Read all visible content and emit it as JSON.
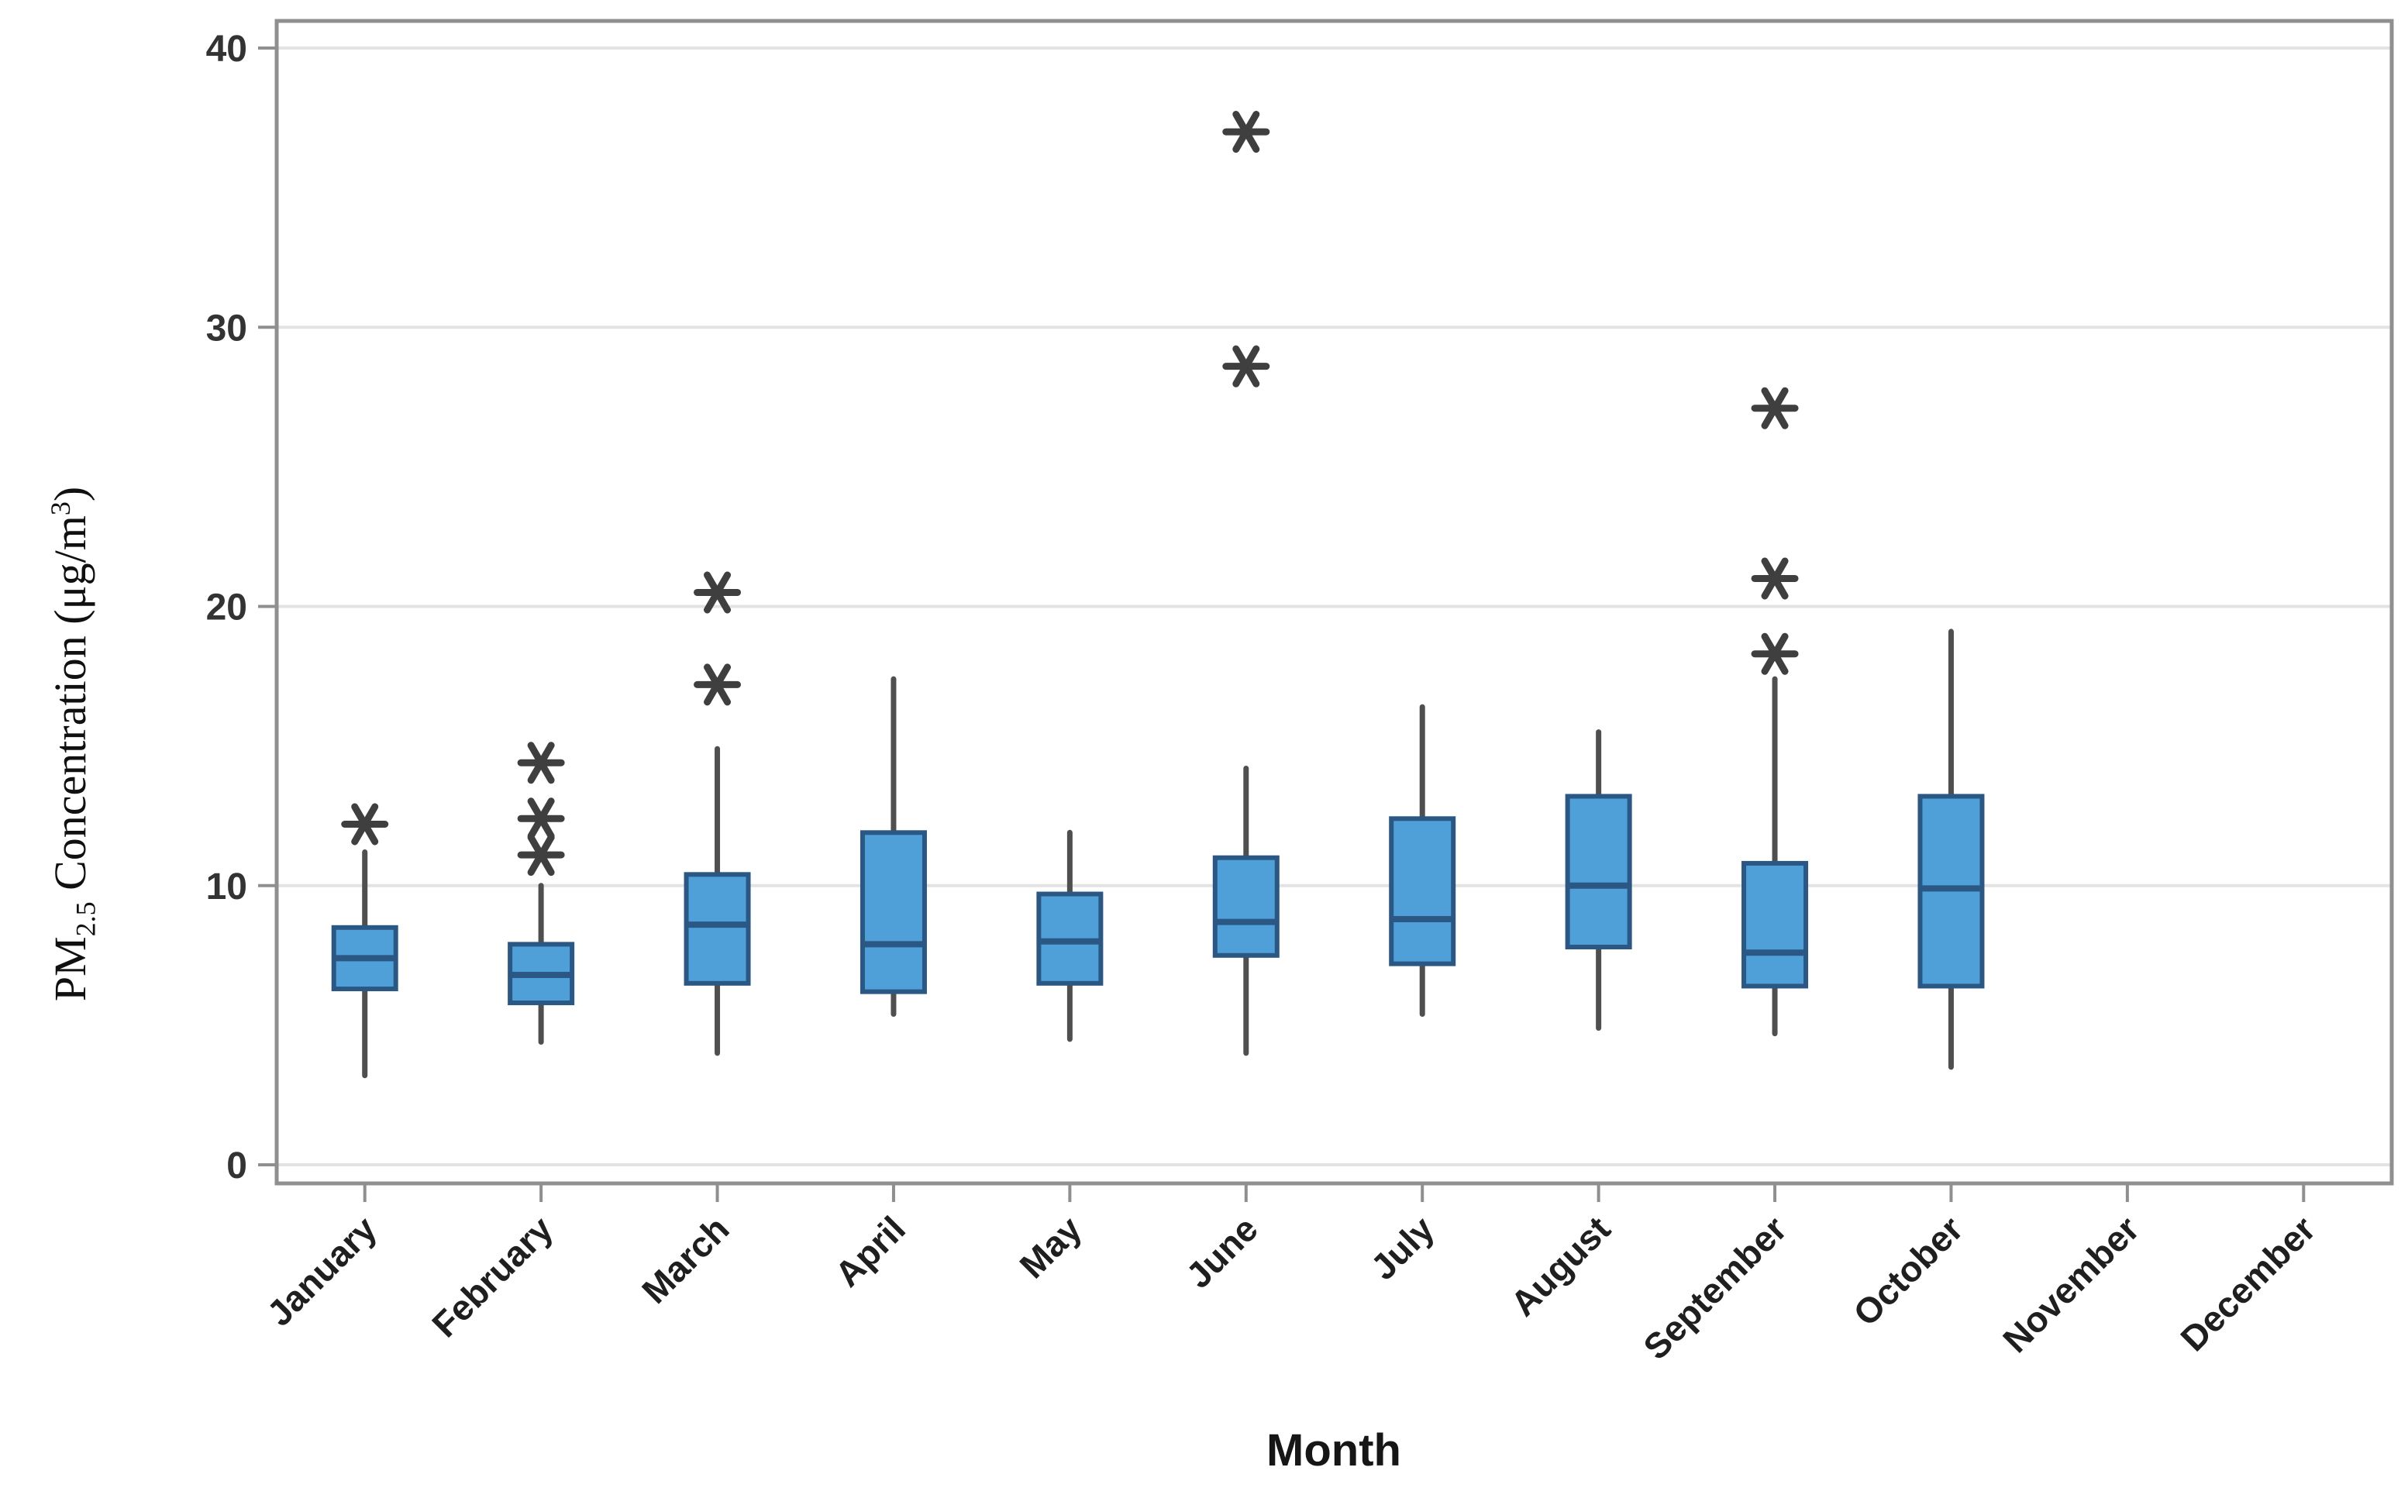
{
  "y_axis": {
    "title_prefix": "PM",
    "title_sub": "2.5",
    "title_mid": " Concentration (μg/m",
    "title_sup": "3",
    "title_suffix": ")"
  },
  "x_axis": {
    "title": "Month"
  },
  "style": {
    "box_fill": "#4f9fd8",
    "box_border": "#2a5783",
    "median_color": "#2a5783",
    "whisker_color": "#4f4f4f",
    "outlier_color": "#3f3f3f",
    "gridline_color": "#e3e3e3",
    "frame_color": "#8f8f8f",
    "tick_color": "#8f8f8f",
    "y_tick_label_color": "#333333",
    "x_tick_label_color": "#1f1f1f",
    "background": "#ffffff"
  },
  "chart_data": {
    "type": "boxplot",
    "title": "",
    "xlabel": "Month",
    "ylabel": "PM2.5 Concentration (μg/m³)",
    "ylim": [
      0,
      40
    ],
    "y_ticks": [
      0,
      10,
      20,
      30,
      40
    ],
    "grid": "horizontal gridlines at each y tick",
    "legend": "none",
    "categories": [
      "January",
      "February",
      "March",
      "April",
      "May",
      "June",
      "July",
      "August",
      "September",
      "October",
      "November",
      "December"
    ],
    "boxes": [
      {
        "month": "January",
        "whisker_low": 3.2,
        "q1": 6.3,
        "median": 7.4,
        "q3": 8.5,
        "whisker_high": 11.2,
        "outliers": [
          12.2
        ]
      },
      {
        "month": "February",
        "whisker_low": 4.4,
        "q1": 5.8,
        "median": 6.8,
        "q3": 7.9,
        "whisker_high": 10.0,
        "outliers": [
          11.1,
          12.4,
          14.4
        ]
      },
      {
        "month": "March",
        "whisker_low": 4.0,
        "q1": 6.5,
        "median": 8.6,
        "q3": 10.4,
        "whisker_high": 14.9,
        "outliers": [
          17.2,
          20.5
        ]
      },
      {
        "month": "April",
        "whisker_low": 5.4,
        "q1": 6.2,
        "median": 7.9,
        "q3": 11.9,
        "whisker_high": 17.4,
        "outliers": []
      },
      {
        "month": "May",
        "whisker_low": 4.5,
        "q1": 6.5,
        "median": 8.0,
        "q3": 9.7,
        "whisker_high": 11.9,
        "outliers": []
      },
      {
        "month": "June",
        "whisker_low": 4.0,
        "q1": 7.5,
        "median": 8.7,
        "q3": 11.0,
        "whisker_high": 14.2,
        "outliers": [
          28.6,
          37.0
        ]
      },
      {
        "month": "July",
        "whisker_low": 5.4,
        "q1": 7.2,
        "median": 8.8,
        "q3": 12.4,
        "whisker_high": 16.4,
        "outliers": []
      },
      {
        "month": "August",
        "whisker_low": 4.9,
        "q1": 7.8,
        "median": 10.0,
        "q3": 13.2,
        "whisker_high": 15.5,
        "outliers": []
      },
      {
        "month": "September",
        "whisker_low": 4.7,
        "q1": 6.4,
        "median": 7.6,
        "q3": 10.8,
        "whisker_high": 17.4,
        "outliers": [
          18.3,
          21.0,
          27.1
        ]
      },
      {
        "month": "October",
        "whisker_low": 3.5,
        "q1": 6.4,
        "median": 9.9,
        "q3": 13.2,
        "whisker_high": 19.1,
        "outliers": []
      },
      null,
      null
    ]
  }
}
